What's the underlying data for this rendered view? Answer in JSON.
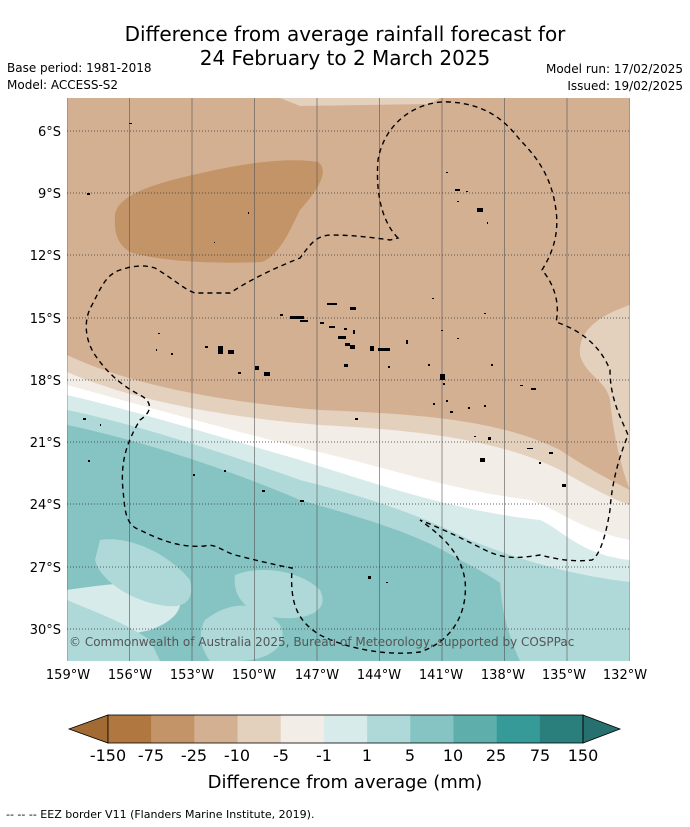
{
  "title": {
    "line1": "Difference from average rainfall forecast for",
    "line2": "24 February to 2 March 2025"
  },
  "meta_left": {
    "base_period": "Base period: 1981-2018",
    "model": "Model: ACCESS-S2"
  },
  "meta_right": {
    "model_run": "Model run: 17/02/2025",
    "issued": "Issued: 19/02/2025"
  },
  "map": {
    "lat_labels": [
      "6°S",
      "9°S",
      "12°S",
      "15°S",
      "18°S",
      "21°S",
      "24°S",
      "27°S",
      "30°S"
    ],
    "lon_labels": [
      "159°W",
      "156°W",
      "153°W",
      "150°W",
      "147°W",
      "144°W",
      "141°W",
      "138°W",
      "135°W",
      "132°W"
    ],
    "copyright": "© Commonwealth of Australia 2025, Bureau of Meteorology, supported by COSPPac"
  },
  "colorbar": {
    "ticks": [
      "-150",
      "-75",
      "-25",
      "-10",
      "-5",
      "-1",
      "1",
      "5",
      "10",
      "25",
      "75",
      "150"
    ],
    "colors": [
      "#b07840",
      "#c39467",
      "#d4b092",
      "#e3d0bd",
      "#f2ede7",
      "#ffffff",
      "#d6ebea",
      "#afd9d8",
      "#85c4c2",
      "#5eaeab",
      "#369b98",
      "#2a7f7c"
    ],
    "title": "Difference from average (mm)"
  },
  "footnote": "--  --  -- EEZ border V11 (Flanders Marine Institute, 2019)."
}
